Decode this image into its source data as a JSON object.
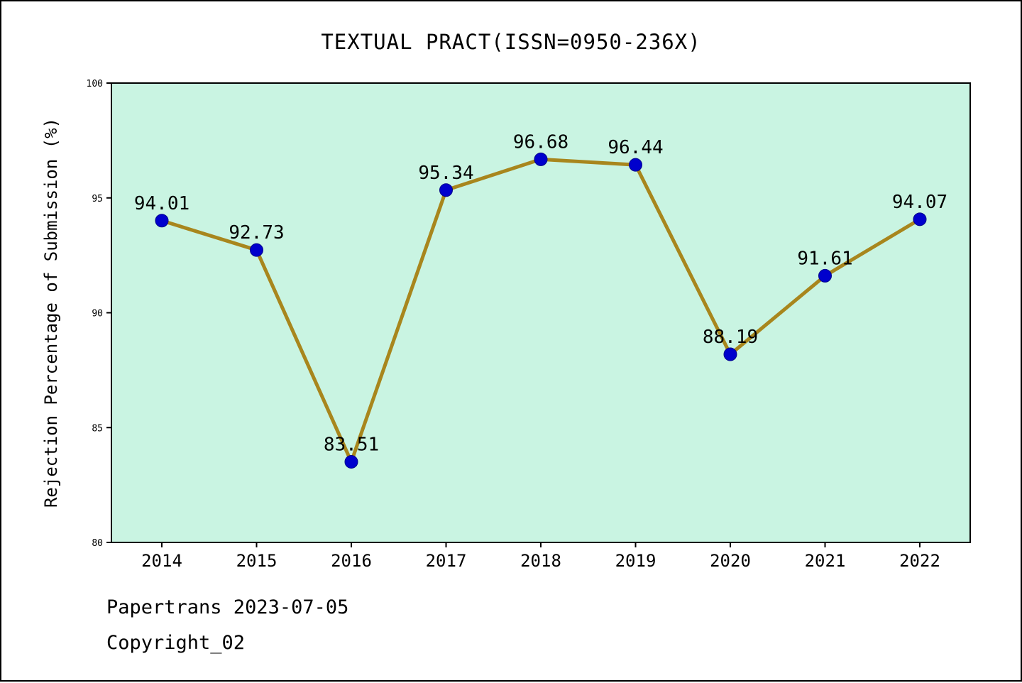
{
  "title": "TEXTUAL PRACT(ISSN=0950-236X)",
  "footer": {
    "line1": "Papertrans 2023-07-05",
    "line2": "Copyright_02"
  },
  "chart_data": {
    "type": "line",
    "title": "TEXTUAL PRACT(ISSN=0950-236X)",
    "categories": [
      "2014",
      "2015",
      "2016",
      "2017",
      "2018",
      "2019",
      "2020",
      "2021",
      "2022"
    ],
    "values": [
      94.01,
      92.73,
      83.51,
      95.34,
      96.68,
      96.44,
      88.19,
      91.61,
      94.07
    ],
    "value_labels": [
      "94.01",
      "92.73",
      "83.51",
      "95.34",
      "96.68",
      "96.44",
      "88.19",
      "91.61",
      "94.07"
    ],
    "xlabel": "",
    "ylabel": "Rejection Percentage of Submission (%)",
    "ylim": [
      80,
      100
    ],
    "yticks": [
      80,
      85,
      90,
      95,
      100
    ],
    "grid": false,
    "legend_position": "none",
    "colors": {
      "plot_bg": "#c9f4e2",
      "line": "#a8861d",
      "marker": "#0000cd",
      "marker_edge": "#00008b",
      "axis": "#000000",
      "text": "#000000"
    }
  }
}
